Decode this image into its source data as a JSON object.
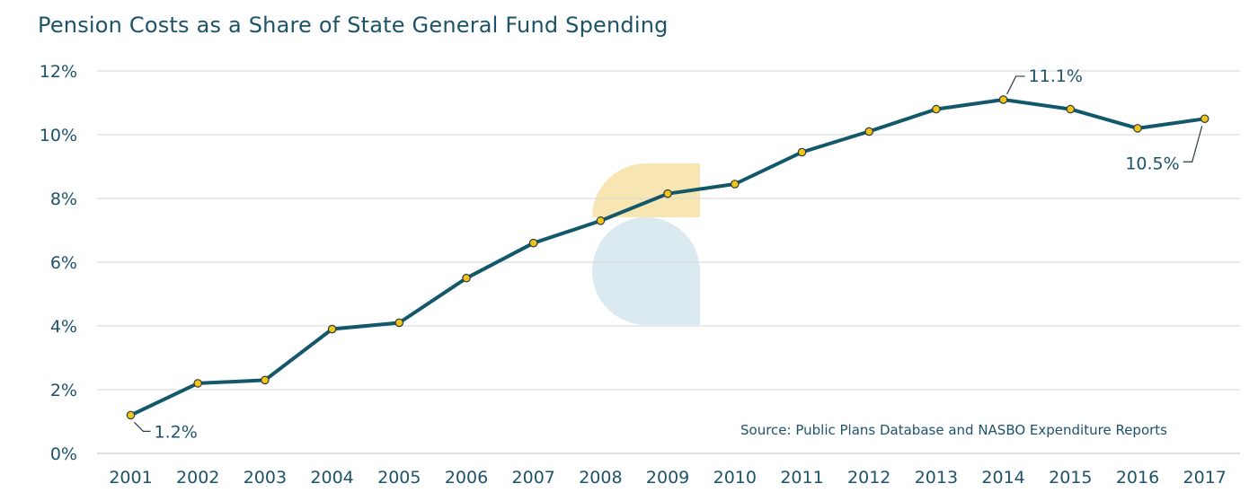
{
  "colors": {
    "line": "#12586a",
    "marker_fill": "#f2c318",
    "marker_stroke": "#2a3b3f",
    "text": "#1d5368",
    "grid": "#d6d6d6",
    "watermark_gold": "#f7e2a4",
    "watermark_blue": "#d5e6ef"
  },
  "chart_data": {
    "type": "line",
    "title": "Pension Costs as a Share of State General Fund Spending",
    "x": [
      "2001",
      "2002",
      "2003",
      "2004",
      "2005",
      "2006",
      "2007",
      "2008",
      "2009",
      "2010",
      "2011",
      "2012",
      "2013",
      "2014",
      "2015",
      "2016",
      "2017"
    ],
    "series": [
      {
        "values": [
          1.2,
          2.2,
          2.3,
          3.9,
          4.1,
          5.5,
          6.6,
          7.3,
          8.15,
          8.45,
          9.45,
          10.1,
          10.8,
          11.1,
          10.8,
          10.2,
          10.5
        ]
      }
    ],
    "ylim": [
      0,
      12
    ],
    "yticks": [
      0,
      2,
      4,
      6,
      8,
      10,
      12
    ],
    "ytick_labels": [
      "0%",
      "2%",
      "4%",
      "6%",
      "8%",
      "10%",
      "12%"
    ],
    "grid": "horizontal",
    "legend": "none",
    "annotations": [
      {
        "index": 0,
        "text": "1.2%"
      },
      {
        "index": 13,
        "text": "11.1%"
      },
      {
        "index": 16,
        "text": "10.5%"
      }
    ],
    "source": "Source: Public Plans Database and NASBO Expenditure Reports"
  }
}
